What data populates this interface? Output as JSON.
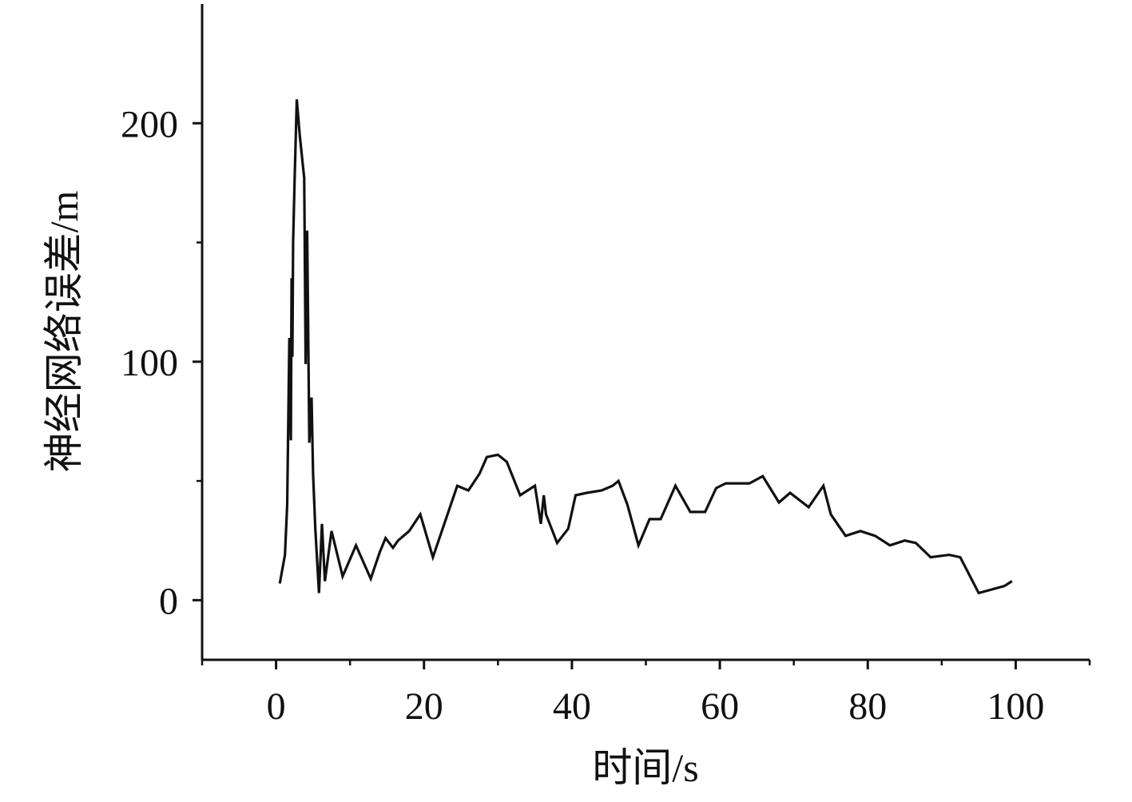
{
  "chart_data": {
    "type": "line",
    "title": "",
    "xlabel": "时间/s",
    "ylabel": "神经网络误差/m",
    "xlim": [
      -10,
      110
    ],
    "ylim": [
      -25,
      250
    ],
    "x_ticks": [
      0,
      20,
      40,
      60,
      80,
      100
    ],
    "x_tick_labels": [
      "0",
      "20",
      "40",
      "60",
      "80",
      "100"
    ],
    "x_minor_ticks": [
      -10,
      10,
      30,
      50,
      70,
      90,
      110
    ],
    "y_ticks": [
      0,
      100,
      200
    ],
    "y_tick_labels": [
      "0",
      "100",
      "200"
    ],
    "y_minor_ticks": [
      50,
      150
    ],
    "grid": false,
    "legend": "none",
    "line_color": "#111111",
    "series": [
      {
        "x": [
          0.5,
          1.2,
          1.5,
          1.8,
          2.0,
          2.1,
          2.2,
          2.3,
          2.5,
          2.8,
          3.2,
          3.8,
          4.0,
          4.2,
          4.5,
          4.8,
          5.0,
          5.3,
          5.8,
          6.2,
          6.6,
          7.5,
          9.0,
          10.8,
          12.8,
          14.0,
          14.8,
          15.8,
          16.5,
          18.0,
          19.5,
          21.2,
          24.5,
          26.0,
          27.5,
          28.5,
          30.0,
          31.2,
          33.0,
          35.0,
          35.8,
          36.2,
          36.5,
          38.0,
          39.5,
          40.5,
          42.0,
          44.0,
          45.5,
          46.3,
          47.5,
          49.0,
          50.5,
          52.0,
          54.0,
          56.0,
          58.0,
          59.5,
          60.8,
          62.5,
          64.0,
          65.8,
          68.0,
          69.5,
          72.0,
          74.0,
          75.0,
          77.0,
          79.0,
          81.0,
          83.0,
          85.0,
          86.5,
          88.5,
          91.0,
          92.5,
          95.0,
          98.5,
          99.5
        ],
        "values": [
          7,
          19,
          40,
          110,
          67,
          135,
          102,
          150,
          175,
          210,
          195,
          177,
          99,
          155,
          66,
          85,
          53,
          30,
          3,
          32,
          8,
          29,
          10,
          23,
          9,
          20,
          26,
          22,
          25,
          29,
          36,
          18,
          48,
          46,
          53,
          60,
          61,
          58,
          44,
          48,
          32,
          44,
          36,
          24,
          30,
          44,
          45,
          46,
          48,
          50,
          40,
          23,
          34,
          34,
          48,
          37,
          37,
          47,
          49,
          49,
          49,
          52,
          41,
          45,
          39,
          48,
          36,
          27,
          29,
          27,
          23,
          25,
          24,
          18,
          19,
          18,
          3,
          6,
          8
        ]
      }
    ]
  }
}
